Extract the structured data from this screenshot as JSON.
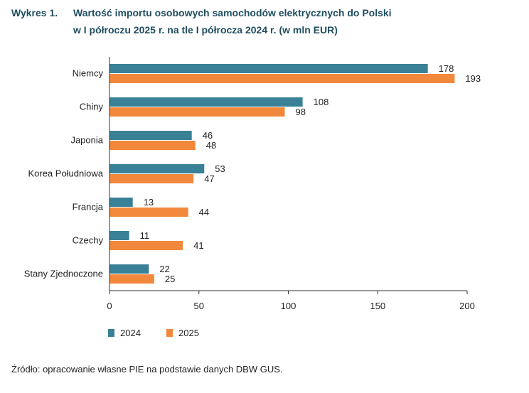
{
  "header": {
    "label": "Wykres 1.",
    "title_line1": "Wartość importu osobowych samochodów elektrycznych do Polski",
    "title_line2": "w I półroczu 2025 r. na tle I półrocza 2024 r. (w mln EUR)"
  },
  "colors": {
    "series2024": "#3a8197",
    "series2025": "#f2883c",
    "axis": "#333333"
  },
  "chart_data": {
    "type": "bar",
    "orientation": "horizontal",
    "categories": [
      "Niemcy",
      "Chiny",
      "Japonia",
      "Korea Południowa",
      "Francja",
      "Czechy",
      "Stany Zjednoczone"
    ],
    "series": [
      {
        "name": "2024",
        "values": [
          178,
          108,
          46,
          53,
          13,
          11,
          22
        ]
      },
      {
        "name": "2025",
        "values": [
          193,
          98,
          48,
          47,
          44,
          41,
          25
        ]
      }
    ],
    "xlim": [
      0,
      200
    ],
    "xticks": [
      0,
      50,
      100,
      150,
      200
    ],
    "grid": false,
    "legend_position": "bottom-left"
  },
  "source": "Źródło: opracowanie własne PIE na podstawie danych DBW GUS."
}
